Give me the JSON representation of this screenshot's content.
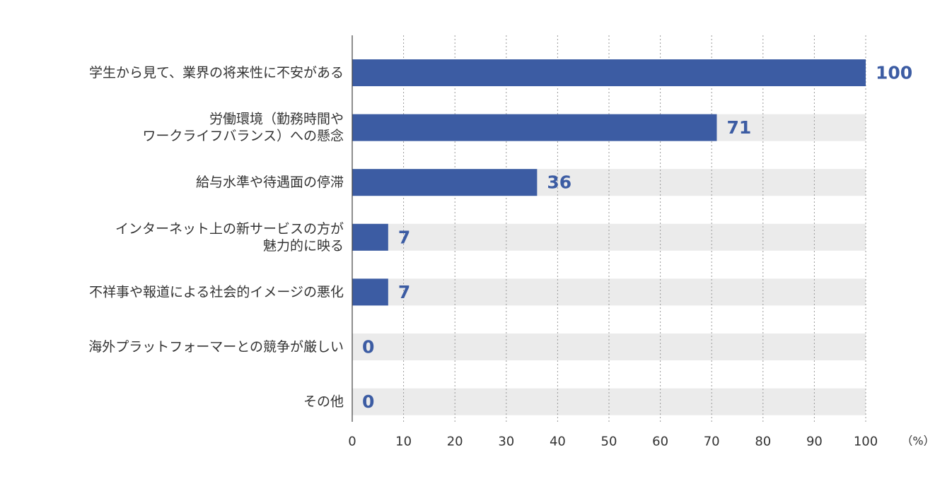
{
  "chart_data": {
    "type": "bar",
    "orientation": "horizontal",
    "categories": [
      [
        "学生から見て、業界の将来性に不安がある"
      ],
      [
        "労働環境（勤務時間や",
        "ワークライフバランス）への懸念"
      ],
      [
        "給与水準や待遇面の停滞"
      ],
      [
        "インターネット上の新サービスの方が",
        "魅力的に映る"
      ],
      [
        "不祥事や報道による社会的イメージの悪化"
      ],
      [
        "海外プラットフォーマーとの競争が厳しい"
      ],
      [
        "その他"
      ]
    ],
    "values": [
      100,
      71,
      36,
      7,
      7,
      0,
      0
    ],
    "value_labels": [
      "100",
      "71",
      "36",
      "7",
      "7",
      "0",
      "0"
    ],
    "xlim": [
      0,
      100
    ],
    "x_ticks": [
      "0",
      "10",
      "20",
      "30",
      "40",
      "50",
      "60",
      "70",
      "80",
      "90",
      "100"
    ],
    "x_unit": "（%）",
    "grid": "vertical dotted",
    "bar_color": "#3c5ca3",
    "track_color": "#ebebeb",
    "value_label_color": "#3c5ca3"
  }
}
